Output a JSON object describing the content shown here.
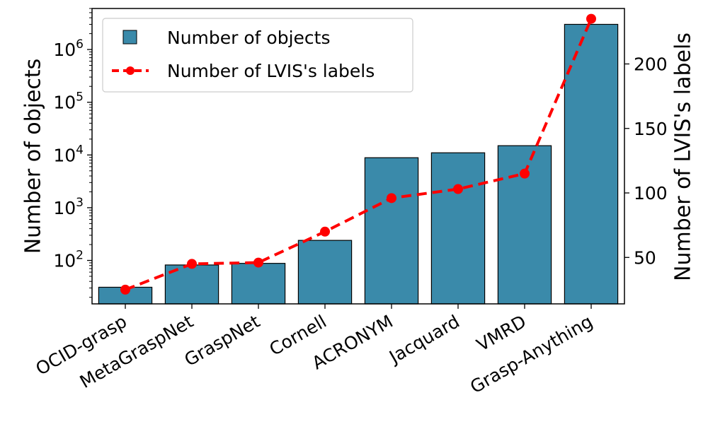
{
  "chart_data": {
    "type": "bar",
    "categories": [
      "OCID-grasp",
      "MetaGraspNet",
      "GraspNet",
      "Cornell",
      "ACRONYM",
      "Jacquard",
      "VMRD",
      "Grasp-Anything"
    ],
    "series": [
      {
        "name": "Number of objects",
        "kind": "bar",
        "axis": "left",
        "values": [
          31,
          82,
          88,
          240,
          8872,
          11000,
          15000,
          3000000
        ],
        "color": "#3a8aaa"
      },
      {
        "name": "Number of LVIS's labels",
        "kind": "line",
        "axis": "right",
        "values": [
          25,
          45,
          46,
          70,
          96,
          103,
          115,
          235
        ],
        "color": "#ff0000"
      }
    ],
    "ylabel": "Number of objects",
    "ylabel_right": "Number of LVIS's labels",
    "yscale_left": "log",
    "ylim_left": [
      15,
      6000000
    ],
    "left_ticks": [
      {
        "value": 100,
        "base": "10",
        "exp": "2"
      },
      {
        "value": 1000,
        "base": "10",
        "exp": "3"
      },
      {
        "value": 10000,
        "base": "10",
        "exp": "4"
      },
      {
        "value": 100000,
        "base": "10",
        "exp": "5"
      },
      {
        "value": 1000000,
        "base": "10",
        "exp": "6"
      }
    ],
    "ylim_right": [
      14,
      243
    ],
    "right_ticks": [
      50,
      100,
      150,
      200
    ],
    "legend_position": "top-left",
    "grid": false
  }
}
